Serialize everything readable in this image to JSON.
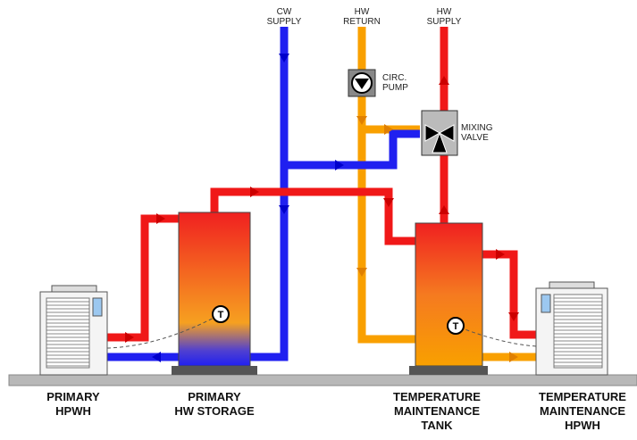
{
  "pipe_labels": [
    {
      "lines": [
        "CW",
        "SUPPLY"
      ]
    },
    {
      "lines": [
        "HW",
        "RETURN"
      ]
    },
    {
      "lines": [
        "HW",
        "SUPPLY"
      ]
    }
  ],
  "components": [
    {
      "lines": [
        "CIRC.",
        "PUMP"
      ]
    },
    {
      "lines": [
        "MIXING",
        "VALVE"
      ]
    }
  ],
  "equipment": [
    {
      "lines": [
        "PRIMARY",
        "HPWH"
      ]
    },
    {
      "lines": [
        "PRIMARY",
        "HW STORAGE"
      ]
    },
    {
      "lines": [
        "TEMPERATURE",
        "MAINTENANCE",
        "TANK"
      ]
    },
    {
      "lines": [
        "TEMPERATURE",
        "MAINTENANCE",
        "HPWH"
      ]
    }
  ],
  "sensors": [
    "T",
    "T"
  ]
}
